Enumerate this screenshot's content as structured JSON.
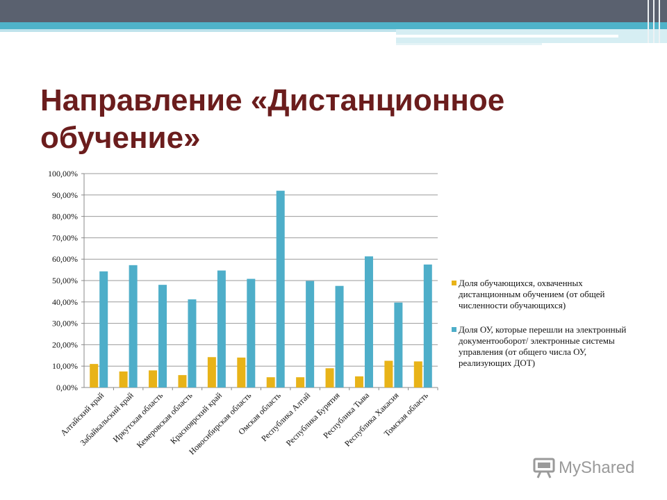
{
  "slide": {
    "title_line1": "Направление «Дистанционное",
    "title_line2": "обучение»"
  },
  "watermark": {
    "text": "MyShared",
    "icon": "projector-icon"
  },
  "colors": {
    "series1": "#e8b318",
    "series2": "#4eaec9",
    "title": "#6b1d1d",
    "topbar": "#5a616f"
  },
  "chart_data": {
    "type": "bar",
    "categories": [
      "Алтайский край",
      "Забайкальский край",
      "Иркутская область",
      "Кемеровская область",
      "Красноярский край",
      "Новосибирская область",
      "Омская область",
      "Республика Алтай",
      "Республика Бурятия",
      "Республика Тыва",
      "Республика Хакасия",
      "Томская область"
    ],
    "series": [
      {
        "name": "Доля обучающихся, охваченных дистанционным обучением (от общей численности обучающихся)",
        "color": "#e8b318",
        "values": [
          11.0,
          7.5,
          8.0,
          5.8,
          14.2,
          14.0,
          4.8,
          4.8,
          9.0,
          5.2,
          12.5,
          12.2
        ]
      },
      {
        "name": "Доля ОУ, которые перешли на электронный документооборот/ электронные системы управления (от общего числа ОУ, реализующих ДОТ)",
        "color": "#4eaec9",
        "values": [
          54.3,
          57.2,
          48.0,
          41.2,
          54.7,
          50.8,
          92.0,
          49.8,
          47.5,
          61.3,
          39.7,
          57.5
        ]
      }
    ],
    "yticks": [
      "0,00%",
      "10,00%",
      "20,00%",
      "30,00%",
      "40,00%",
      "50,00%",
      "60,00%",
      "70,00%",
      "80,00%",
      "90,00%",
      "100,00%"
    ],
    "ylim": [
      0,
      100
    ],
    "grid": true,
    "legend_position": "right"
  }
}
